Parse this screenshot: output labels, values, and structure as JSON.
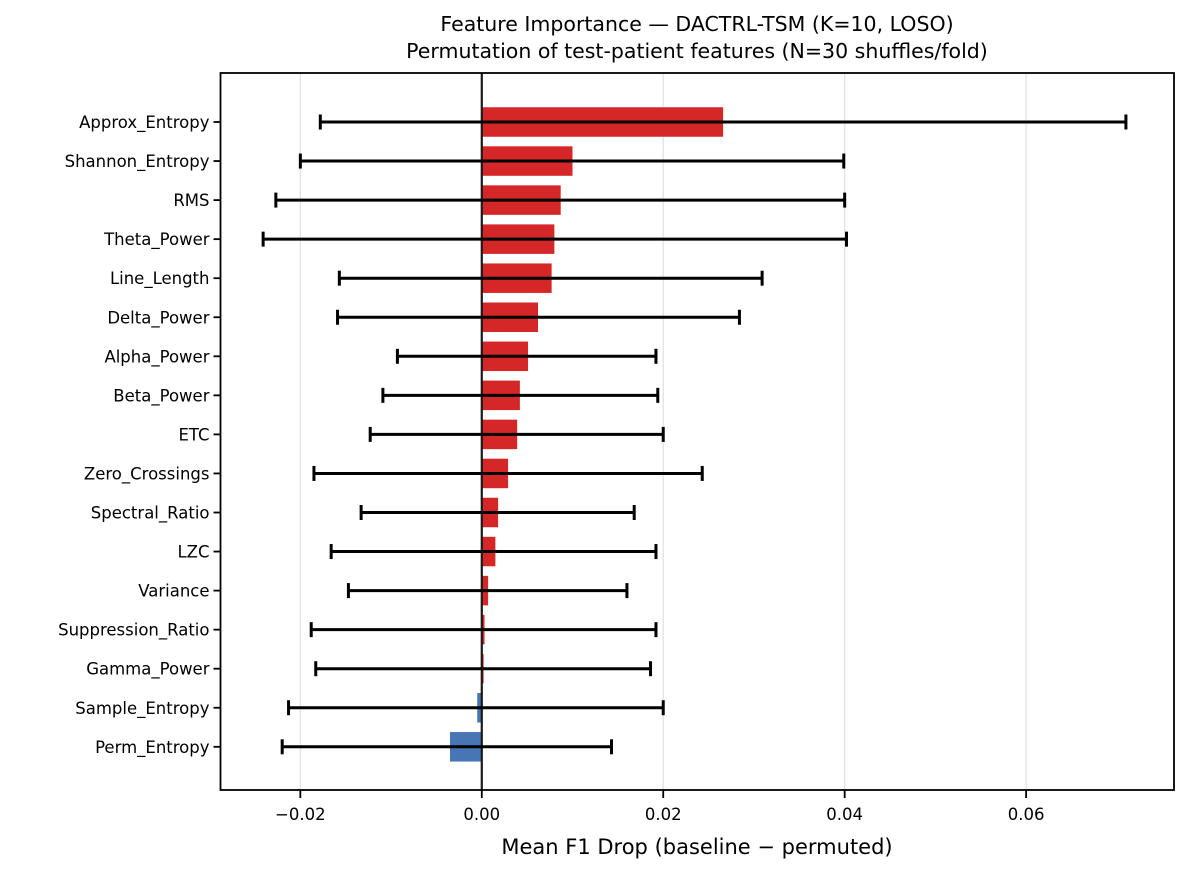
{
  "figure": {
    "background": "#ffffff",
    "kind": "matplotlib-style static chart"
  },
  "chart_data": {
    "type": "bar",
    "orientation": "horizontal",
    "title": "Feature Importance — DACTRL-TSM (K=10, LOSO)",
    "subtitle": "Permutation of test-patient features (N=30 shuffles/fold)",
    "xlabel": "Mean F1 Drop (baseline − permuted)",
    "ylabel": "",
    "legend": "none",
    "grid": "vertical-light",
    "zero_line": true,
    "categories": [
      "Approx_Entropy",
      "Shannon_Entropy",
      "RMS",
      "Theta_Power",
      "Line_Length",
      "Delta_Power",
      "Alpha_Power",
      "Beta_Power",
      "ETC",
      "Zero_Crossings",
      "Spectral_Ratio",
      "LZC",
      "Variance",
      "Suppression_Ratio",
      "Gamma_Power",
      "Sample_Entropy",
      "Perm_Entropy"
    ],
    "series": [
      {
        "name": "Mean F1 drop (baseline − permuted)",
        "values": [
          0.0266,
          0.01,
          0.0087,
          0.008,
          0.0077,
          0.0062,
          0.0051,
          0.0042,
          0.0039,
          0.0029,
          0.0018,
          0.0015,
          0.0007,
          0.0003,
          0.0002,
          -0.0005,
          -0.0035
        ],
        "error_low": [
          -0.0178,
          -0.02,
          -0.0227,
          -0.0241,
          -0.0157,
          -0.0159,
          -0.0093,
          -0.0109,
          -0.0123,
          -0.0185,
          -0.0133,
          -0.0166,
          -0.0147,
          -0.0188,
          -0.0183,
          -0.0213,
          -0.022
        ],
        "error_high": [
          0.071,
          0.0399,
          0.04,
          0.0402,
          0.0309,
          0.0284,
          0.0192,
          0.0194,
          0.02,
          0.0243,
          0.0168,
          0.0192,
          0.016,
          0.0192,
          0.0186,
          0.02,
          0.0143
        ]
      }
    ],
    "xlim": [
      -0.0288,
      0.0763
    ],
    "xticks": [
      -0.02,
      0.0,
      0.02,
      0.04,
      0.06
    ],
    "xtick_labels": [
      "−0.02",
      "0.00",
      "0.02",
      "0.04",
      "0.06"
    ],
    "colors": {
      "positive_bar": "#d62728",
      "negative_bar": "#4876b4",
      "errorbar": "#000000",
      "zero_line": "#1a1a1a",
      "gridline": "#e4e4e4",
      "spine": "#000000"
    }
  }
}
